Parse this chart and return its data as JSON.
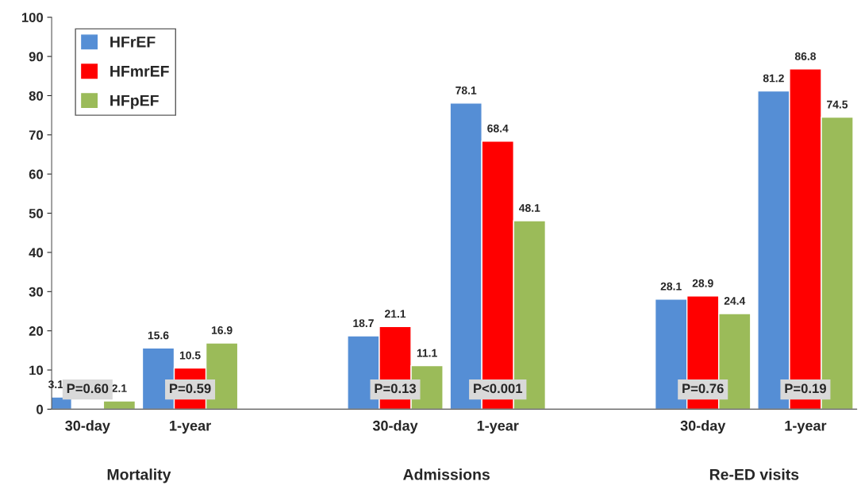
{
  "chart_data": {
    "type": "bar",
    "categories": [
      "30-day",
      "1-year",
      null,
      "30-day",
      "1-year",
      null,
      "30-day",
      "1-year"
    ],
    "series": [
      {
        "name": "HFrEF",
        "color": "#558ed5",
        "values": [
          3.1,
          15.6,
          null,
          18.7,
          78.1,
          null,
          28.1,
          81.2
        ]
      },
      {
        "name": "HFmrEF",
        "color": "#ff0000",
        "values": [
          null,
          10.5,
          null,
          21.1,
          68.4,
          null,
          28.9,
          86.8
        ]
      },
      {
        "name": "HFpEF",
        "color": "#9bbb59",
        "values": [
          2.1,
          16.9,
          null,
          11.1,
          48.1,
          null,
          24.4,
          74.5
        ]
      }
    ],
    "ylim": [
      0,
      100
    ],
    "yticks": [
      0,
      10,
      20,
      30,
      40,
      50,
      60,
      70,
      80,
      90,
      100
    ],
    "data_labels": true,
    "grid": false,
    "legend": "top left",
    "annotations": [
      "P=0.60",
      "P=0.59",
      "P=0.13",
      "P<0.001",
      "P=0.76",
      "P=0.19",
      "Mortality",
      "Admissions",
      "Re-ED visits"
    ]
  }
}
